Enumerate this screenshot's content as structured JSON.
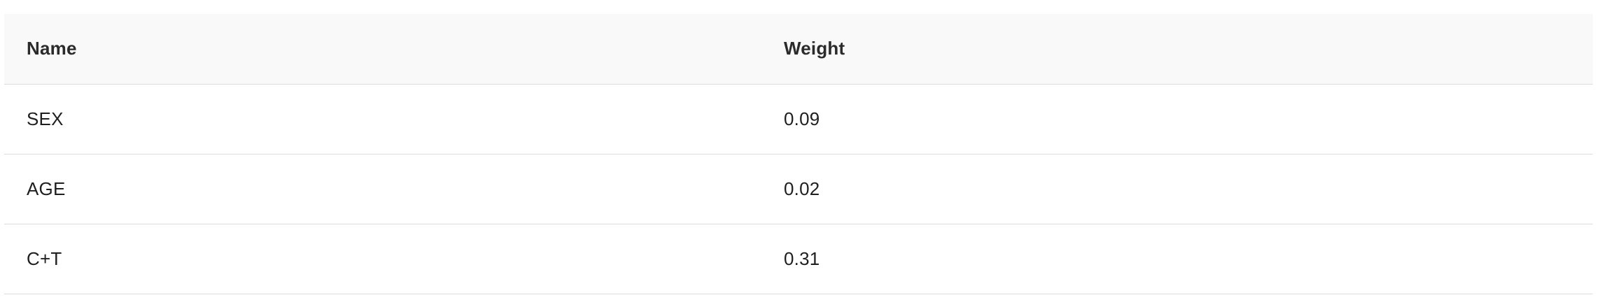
{
  "table": {
    "headers": [
      "Name",
      "Weight"
    ],
    "rows": [
      {
        "name": "SEX",
        "weight": "0.09"
      },
      {
        "name": "AGE",
        "weight": "0.02"
      },
      {
        "name": "C+T",
        "weight": "0.31"
      }
    ]
  }
}
